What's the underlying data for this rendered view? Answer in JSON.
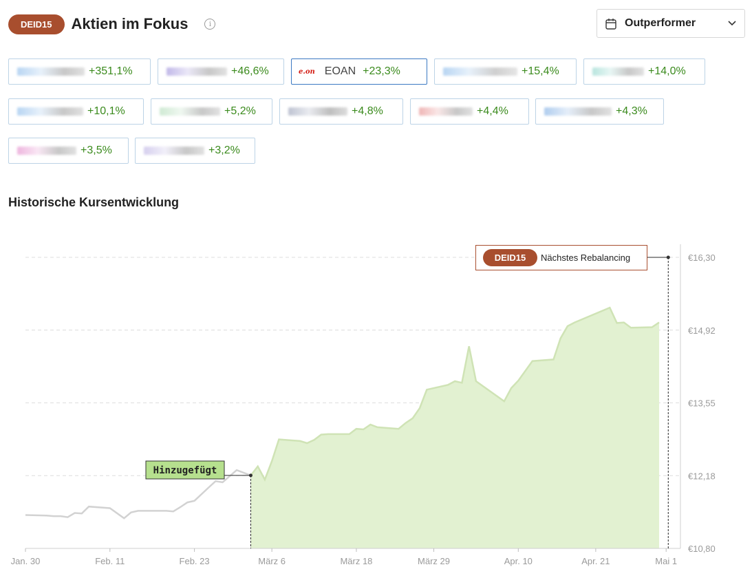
{
  "header": {
    "badge": "DEID15",
    "title": "Aktien im Fokus",
    "info_icon": "info-icon"
  },
  "dropdown": {
    "label": "Outperformer",
    "icon": "calendar-icon",
    "chevron": "chevron-down-icon"
  },
  "chips": [
    {
      "perf": "+351,1%",
      "logo_colors": [
        "#7eb3e8",
        "#9a9a9a"
      ]
    },
    {
      "perf": "+46,6%",
      "logo_colors": [
        "#8f7fd6",
        "#9a9a9a"
      ]
    },
    {
      "ticker": "EOAN",
      "perf": "+23,3%",
      "logo_text": "e.on",
      "selected": true
    },
    {
      "perf": "+15,4%",
      "logo_colors": [
        "#7eb3e8",
        "#a8a8a8"
      ]
    },
    {
      "perf": "+14,0%",
      "logo_colors": [
        "#7fd0c4",
        "#9a9a9a"
      ]
    },
    {
      "perf": "+10,1%",
      "logo_colors": [
        "#7eb3e8",
        "#9a9a9a"
      ]
    },
    {
      "perf": "+5,2%",
      "logo_colors": [
        "#a8d8b0",
        "#9a9a9a"
      ]
    },
    {
      "perf": "+4,8%",
      "logo_colors": [
        "#8a93ad",
        "#8a8a8a"
      ]
    },
    {
      "perf": "+4,4%",
      "logo_colors": [
        "#e27b7b",
        "#9a9a9a"
      ]
    },
    {
      "perf": "+4,3%",
      "logo_colors": [
        "#6fa3e0",
        "#9a9a9a"
      ]
    },
    {
      "perf": "+3,5%",
      "logo_colors": [
        "#e07bc4",
        "#9a9a9a"
      ]
    },
    {
      "perf": "+3,2%",
      "logo_colors": [
        "#b4a8e0",
        "#9a9a9a"
      ]
    }
  ],
  "section_title": "Historische Kursentwicklung",
  "chart_data": {
    "type": "area",
    "title": "Historische Kursentwicklung",
    "y_ticks": [
      "€16,30",
      "€14,92",
      "€13,55",
      "€12,18",
      "€10,80"
    ],
    "ylim": [
      10.8,
      16.3
    ],
    "x_ticks": [
      {
        "label": "Jan. 30",
        "day": 0
      },
      {
        "label": "Feb. 11",
        "day": 12
      },
      {
        "label": "Feb. 23",
        "day": 24
      },
      {
        "label": "März 6",
        "day": 35
      },
      {
        "label": "März 18",
        "day": 47
      },
      {
        "label": "März 29",
        "day": 58
      },
      {
        "label": "Apr. 10",
        "day": 70
      },
      {
        "label": "Apr. 21",
        "day": 81
      },
      {
        "label": "Mai 1",
        "day": 91
      }
    ],
    "xlim": [
      0,
      94
    ],
    "added_day": 32,
    "rebalance_day": 91.3,
    "added_label": "Hinzugefügt",
    "rebalance_badge": "DEID15",
    "rebalance_label": "Nächstes Rebalancing",
    "colors": {
      "grey_line": "#d2d2d2",
      "green_line": "#cfe3b5",
      "green_fill": "#e2f1d1",
      "added_box": "#b6e08e",
      "badge": "#a84e2e"
    },
    "series": [
      {
        "name": "before",
        "points": [
          [
            0,
            11.43
          ],
          [
            3,
            11.42
          ],
          [
            4,
            11.41
          ],
          [
            5,
            11.41
          ],
          [
            6,
            11.39
          ],
          [
            7,
            11.47
          ],
          [
            8,
            11.46
          ],
          [
            9,
            11.59
          ],
          [
            12,
            11.56
          ],
          [
            14,
            11.37
          ],
          [
            15,
            11.48
          ],
          [
            16,
            11.51
          ],
          [
            20,
            11.51
          ],
          [
            21,
            11.5
          ],
          [
            22,
            11.58
          ],
          [
            23,
            11.67
          ],
          [
            24,
            11.7
          ],
          [
            26,
            11.95
          ],
          [
            27,
            12.07
          ],
          [
            28,
            12.05
          ],
          [
            30,
            12.28
          ],
          [
            32,
            12.18
          ]
        ]
      },
      {
        "name": "after",
        "points": [
          [
            32,
            12.18
          ],
          [
            33,
            12.35
          ],
          [
            34,
            12.1
          ],
          [
            35,
            12.45
          ],
          [
            36,
            12.86
          ],
          [
            38,
            12.84
          ],
          [
            39,
            12.83
          ],
          [
            40,
            12.79
          ],
          [
            41,
            12.85
          ],
          [
            42,
            12.95
          ],
          [
            43,
            12.96
          ],
          [
            46,
            12.96
          ],
          [
            47,
            13.06
          ],
          [
            48,
            13.05
          ],
          [
            49,
            13.14
          ],
          [
            50,
            13.09
          ],
          [
            53,
            13.06
          ],
          [
            54,
            13.17
          ],
          [
            55,
            13.26
          ],
          [
            56,
            13.45
          ],
          [
            57,
            13.8
          ],
          [
            59,
            13.86
          ],
          [
            60,
            13.89
          ],
          [
            61,
            13.96
          ],
          [
            62,
            13.93
          ],
          [
            63,
            14.62
          ],
          [
            64,
            13.96
          ],
          [
            68,
            13.58
          ],
          [
            69,
            13.83
          ],
          [
            70,
            13.97
          ],
          [
            72,
            14.34
          ],
          [
            75,
            14.37
          ],
          [
            76,
            14.77
          ],
          [
            77,
            15.0
          ],
          [
            78,
            15.07
          ],
          [
            83,
            15.35
          ],
          [
            84,
            15.06
          ],
          [
            85,
            15.07
          ],
          [
            86,
            14.97
          ],
          [
            89,
            14.98
          ],
          [
            90,
            15.07
          ]
        ]
      }
    ]
  }
}
